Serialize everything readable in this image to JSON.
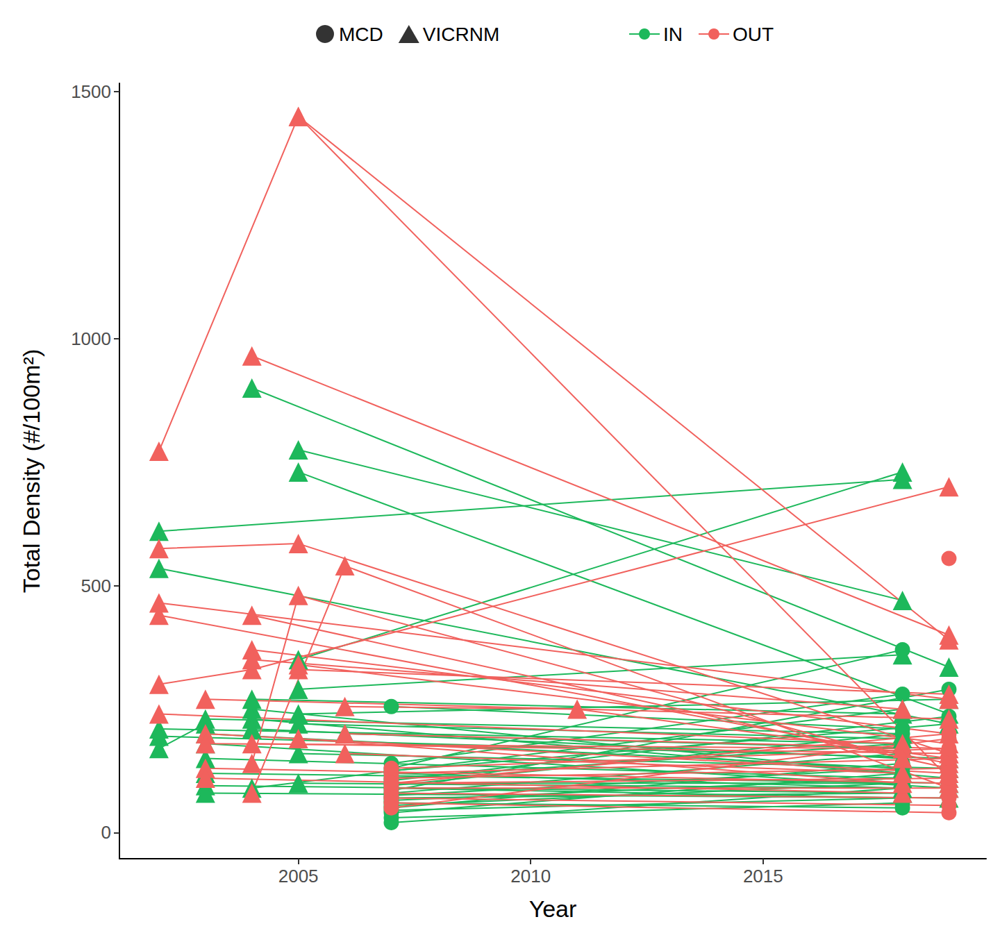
{
  "chart_data": {
    "type": "line",
    "x_label": "Year",
    "y_label": "Total Density (#/100m²)",
    "xlim": [
      2001.15,
      2019.8
    ],
    "xticks": [
      2005,
      2010,
      2015
    ],
    "ylim": [
      -53,
      1517
    ],
    "yticks": [
      0,
      500,
      1000,
      1500
    ],
    "grid": false,
    "legend": "top",
    "sites": [
      {
        "name": "MCD",
        "marker": "circle"
      },
      {
        "name": "VICRNM",
        "marker": "triangle"
      }
    ],
    "groups": [
      {
        "name": "IN",
        "color": "#1db85b"
      },
      {
        "name": "OUT",
        "color": "#f1615d"
      }
    ],
    "series": [
      {
        "name": "IN",
        "site": "VICRNM",
        "x": [
          2002,
          2018
        ],
        "values": [
          610,
          715
        ]
      },
      {
        "name": "IN",
        "site": "VICRNM",
        "x": [
          2002,
          2019
        ],
        "values": [
          535,
          220
        ]
      },
      {
        "name": "IN",
        "site": "VICRNM",
        "x": [
          2002,
          2018
        ],
        "values": [
          210,
          180
        ]
      },
      {
        "name": "IN",
        "site": "VICRNM",
        "x": [
          2002,
          2019
        ],
        "values": [
          195,
          150
        ]
      },
      {
        "name": "IN",
        "site": "VICRNM",
        "x": [
          2002,
          2003
        ],
        "values": [
          170,
          220
        ]
      },
      {
        "name": "IN",
        "site": "VICRNM",
        "x": [
          2003,
          2018
        ],
        "values": [
          230,
          200
        ]
      },
      {
        "name": "IN",
        "site": "VICRNM",
        "x": [
          2003,
          2018
        ],
        "values": [
          200,
          130
        ]
      },
      {
        "name": "IN",
        "site": "VICRNM",
        "x": [
          2003,
          2019
        ],
        "values": [
          180,
          90
        ]
      },
      {
        "name": "IN",
        "site": "VICRNM",
        "x": [
          2003,
          2018
        ],
        "values": [
          150,
          110
        ]
      },
      {
        "name": "IN",
        "site": "VICRNM",
        "x": [
          2003,
          2019
        ],
        "values": [
          120,
          100
        ]
      },
      {
        "name": "IN",
        "site": "VICRNM",
        "x": [
          2003,
          2018
        ],
        "values": [
          95,
          80
        ]
      },
      {
        "name": "IN",
        "site": "VICRNM",
        "x": [
          2003,
          2019
        ],
        "values": [
          80,
          70
        ]
      },
      {
        "name": "IN",
        "site": "VICRNM",
        "x": [
          2004,
          2019
        ],
        "values": [
          900,
          335
        ]
      },
      {
        "name": "IN",
        "site": "VICRNM",
        "x": [
          2004,
          2018
        ],
        "values": [
          250,
          120
        ]
      },
      {
        "name": "IN",
        "site": "VICRNM",
        "x": [
          2004,
          2019
        ],
        "values": [
          230,
          110
        ]
      },
      {
        "name": "IN",
        "site": "VICRNM",
        "x": [
          2004,
          2018
        ],
        "values": [
          210,
          150
        ]
      },
      {
        "name": "IN",
        "site": "VICRNM",
        "x": [
          2004,
          2018
        ],
        "values": [
          270,
          240
        ]
      },
      {
        "name": "IN",
        "site": "VICRNM",
        "x": [
          2004,
          2018
        ],
        "values": [
          90,
          250
        ]
      },
      {
        "name": "IN",
        "site": "VICRNM",
        "x": [
          2005,
          2018
        ],
        "values": [
          775,
          470
        ]
      },
      {
        "name": "IN",
        "site": "VICRNM",
        "x": [
          2005,
          2019
        ],
        "values": [
          730,
          240
        ]
      },
      {
        "name": "IN",
        "site": "VICRNM",
        "x": [
          2005,
          2018
        ],
        "values": [
          350,
          730
        ]
      },
      {
        "name": "IN",
        "site": "VICRNM",
        "x": [
          2005,
          2018
        ],
        "values": [
          290,
          360
        ]
      },
      {
        "name": "IN",
        "site": "VICRNM",
        "x": [
          2005,
          2019
        ],
        "values": [
          240,
          270
        ]
      },
      {
        "name": "IN",
        "site": "VICRNM",
        "x": [
          2005,
          2018
        ],
        "values": [
          220,
          190
        ]
      },
      {
        "name": "IN",
        "site": "VICRNM",
        "x": [
          2005,
          2019
        ],
        "values": [
          160,
          130
        ]
      },
      {
        "name": "IN",
        "site": "VICRNM",
        "x": [
          2005,
          2018
        ],
        "values": [
          100,
          90
        ]
      },
      {
        "name": "IN",
        "site": "VICRNM",
        "x": [
          2006,
          2018
        ],
        "values": [
          200,
          170
        ]
      },
      {
        "name": "IN",
        "site": "MCD",
        "x": [
          2007,
          2018
        ],
        "values": [
          20,
          90
        ]
      },
      {
        "name": "IN",
        "site": "MCD",
        "x": [
          2007,
          2018
        ],
        "values": [
          30,
          60
        ]
      },
      {
        "name": "IN",
        "site": "MCD",
        "x": [
          2007,
          2018
        ],
        "values": [
          40,
          120
        ]
      },
      {
        "name": "IN",
        "site": "MCD",
        "x": [
          2007,
          2018
        ],
        "values": [
          45,
          70
        ]
      },
      {
        "name": "IN",
        "site": "MCD",
        "x": [
          2007,
          2018
        ],
        "values": [
          50,
          140
        ]
      },
      {
        "name": "IN",
        "site": "MCD",
        "x": [
          2007,
          2018
        ],
        "values": [
          55,
          100
        ]
      },
      {
        "name": "IN",
        "site": "MCD",
        "x": [
          2007,
          2018
        ],
        "values": [
          60,
          50
        ]
      },
      {
        "name": "IN",
        "site": "MCD",
        "x": [
          2007,
          2018
        ],
        "values": [
          65,
          110
        ]
      },
      {
        "name": "IN",
        "site": "MCD",
        "x": [
          2007,
          2018
        ],
        "values": [
          70,
          80
        ]
      },
      {
        "name": "IN",
        "site": "MCD",
        "x": [
          2007,
          2018
        ],
        "values": [
          75,
          130
        ]
      },
      {
        "name": "IN",
        "site": "MCD",
        "x": [
          2007,
          2018
        ],
        "values": [
          80,
          160
        ]
      },
      {
        "name": "IN",
        "site": "MCD",
        "x": [
          2007,
          2018
        ],
        "values": [
          90,
          70
        ]
      },
      {
        "name": "IN",
        "site": "MCD",
        "x": [
          2007,
          2018
        ],
        "values": [
          95,
          200
        ]
      },
      {
        "name": "IN",
        "site": "MCD",
        "x": [
          2007,
          2018
        ],
        "values": [
          100,
          100
        ]
      },
      {
        "name": "IN",
        "site": "MCD",
        "x": [
          2007,
          2018
        ],
        "values": [
          110,
          180
        ]
      },
      {
        "name": "IN",
        "site": "MCD",
        "x": [
          2007,
          2018
        ],
        "values": [
          120,
          90
        ]
      },
      {
        "name": "IN",
        "site": "MCD",
        "x": [
          2007,
          2018
        ],
        "values": [
          130,
          370
        ]
      },
      {
        "name": "IN",
        "site": "MCD",
        "x": [
          2007,
          2018
        ],
        "values": [
          140,
          280
        ]
      },
      {
        "name": "IN",
        "site": "MCD",
        "x": [
          2007,
          2018
        ],
        "values": [
          255,
          210
        ]
      },
      {
        "name": "IN",
        "site": "MCD",
        "x": [
          2007,
          2019
        ],
        "values": [
          85,
          290
        ]
      },
      {
        "name": "IN",
        "site": "MCD",
        "x": [
          2007,
          2019
        ],
        "values": [
          105,
          235
        ]
      },
      {
        "name": "IN",
        "site": "MCD",
        "x": [
          2007,
          2019
        ],
        "values": [
          125,
          220
        ]
      },
      {
        "name": "OUT",
        "site": "VICRNM",
        "x": [
          2002,
          2005,
          2019
        ],
        "values": [
          772,
          1450,
          390
        ]
      },
      {
        "name": "OUT",
        "site": "VICRNM",
        "x": [
          2005,
          2019
        ],
        "values": [
          1450,
          110
        ]
      },
      {
        "name": "OUT",
        "site": "VICRNM",
        "x": [
          2002,
          2005,
          2019
        ],
        "values": [
          575,
          585,
          160
        ]
      },
      {
        "name": "OUT",
        "site": "VICRNM",
        "x": [
          2002,
          2019
        ],
        "values": [
          465,
          270
        ]
      },
      {
        "name": "OUT",
        "site": "VICRNM",
        "x": [
          2002,
          2019
        ],
        "values": [
          440,
          140
        ]
      },
      {
        "name": "OUT",
        "site": "VICRNM",
        "x": [
          2002,
          2004,
          2019
        ],
        "values": [
          300,
          330,
          700
        ]
      },
      {
        "name": "OUT",
        "site": "VICRNM",
        "x": [
          2002,
          2018
        ],
        "values": [
          240,
          180
        ]
      },
      {
        "name": "OUT",
        "site": "VICRNM",
        "x": [
          2003,
          2019
        ],
        "values": [
          270,
          230
        ]
      },
      {
        "name": "OUT",
        "site": "VICRNM",
        "x": [
          2003,
          2019
        ],
        "values": [
          200,
          120
        ]
      },
      {
        "name": "OUT",
        "site": "VICRNM",
        "x": [
          2003,
          2018
        ],
        "values": [
          180,
          170
        ]
      },
      {
        "name": "OUT",
        "site": "VICRNM",
        "x": [
          2003,
          2019
        ],
        "values": [
          130,
          100
        ]
      },
      {
        "name": "OUT",
        "site": "VICRNM",
        "x": [
          2003,
          2018
        ],
        "values": [
          110,
          80
        ]
      },
      {
        "name": "OUT",
        "site": "VICRNM",
        "x": [
          2004,
          2019
        ],
        "values": [
          965,
          400
        ]
      },
      {
        "name": "OUT",
        "site": "VICRNM",
        "x": [
          2004,
          2019
        ],
        "values": [
          440,
          130
        ]
      },
      {
        "name": "OUT",
        "site": "VICRNM",
        "x": [
          2004,
          2019
        ],
        "values": [
          370,
          200
        ]
      },
      {
        "name": "OUT",
        "site": "VICRNM",
        "x": [
          2004,
          2018
        ],
        "values": [
          350,
          250
        ]
      },
      {
        "name": "OUT",
        "site": "VICRNM",
        "x": [
          2004,
          2019
        ],
        "values": [
          180,
          160
        ]
      },
      {
        "name": "OUT",
        "site": "VICRNM",
        "x": [
          2004,
          2005,
          2018
        ],
        "values": [
          140,
          480,
          150
        ]
      },
      {
        "name": "OUT",
        "site": "VICRNM",
        "x": [
          2004,
          2006,
          2019
        ],
        "values": [
          80,
          540,
          90
        ]
      },
      {
        "name": "OUT",
        "site": "VICRNM",
        "x": [
          2006,
          2011,
          2019
        ],
        "values": [
          255,
          250,
          150
        ]
      },
      {
        "name": "OUT",
        "site": "VICRNM",
        "x": [
          2005,
          2019
        ],
        "values": [
          330,
          280
        ]
      },
      {
        "name": "OUT",
        "site": "VICRNM",
        "x": [
          2005,
          2018
        ],
        "values": [
          190,
          100
        ]
      },
      {
        "name": "OUT",
        "site": "VICRNM",
        "x": [
          2005,
          2019
        ],
        "values": [
          340,
          180
        ]
      },
      {
        "name": "OUT",
        "site": "VICRNM",
        "x": [
          2006,
          2018
        ],
        "values": [
          160,
          120
        ]
      },
      {
        "name": "OUT",
        "site": "VICRNM",
        "x": [
          2006,
          2019
        ],
        "values": [
          200,
          170
        ]
      },
      {
        "name": "OUT",
        "site": "MCD",
        "x": [
          2007,
          2019
        ],
        "values": [
          60,
          40
        ]
      },
      {
        "name": "OUT",
        "site": "MCD",
        "x": [
          2007,
          2019
        ],
        "values": [
          70,
          55
        ]
      },
      {
        "name": "OUT",
        "site": "MCD",
        "x": [
          2007,
          2019
        ],
        "values": [
          80,
          70
        ]
      },
      {
        "name": "OUT",
        "site": "MCD",
        "x": [
          2007,
          2019
        ],
        "values": [
          90,
          90
        ]
      },
      {
        "name": "OUT",
        "site": "MCD",
        "x": [
          2007,
          2019
        ],
        "values": [
          100,
          110
        ]
      },
      {
        "name": "OUT",
        "site": "MCD",
        "x": [
          2007,
          2019
        ],
        "values": [
          110,
          130
        ]
      },
      {
        "name": "OUT",
        "site": "MCD",
        "x": [
          2007,
          2019
        ],
        "values": [
          120,
          150
        ]
      },
      {
        "name": "OUT",
        "site": "MCD",
        "x": [
          2007,
          2019
        ],
        "values": [
          130,
          170
        ]
      },
      {
        "name": "OUT",
        "site": "MCD",
        "x": [
          2007,
          2019
        ],
        "values": [
          50,
          190
        ]
      },
      {
        "name": "OUT",
        "site": "MCD",
        "x": [
          2007,
          2019
        ],
        "values": [
          100,
          200
        ]
      },
      {
        "name": "OUT",
        "site": "MCD",
        "x": [
          2019
        ],
        "values": [
          555
        ]
      }
    ]
  }
}
